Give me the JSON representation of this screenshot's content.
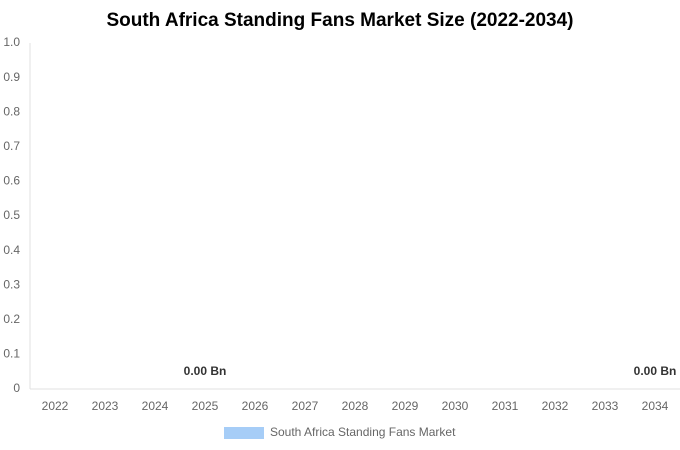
{
  "chart_data": {
    "type": "bar",
    "title": "South Africa Standing Fans Market Size (2022-2034)",
    "categories": [
      "2022",
      "2023",
      "2024",
      "2025",
      "2026",
      "2027",
      "2028",
      "2029",
      "2030",
      "2031",
      "2032",
      "2033",
      "2034"
    ],
    "series": [
      {
        "name": "South Africa Standing Fans Market",
        "color": "#a6cdf7",
        "values": [
          0,
          0,
          0,
          0,
          0,
          0,
          0,
          0,
          0,
          0,
          0,
          0,
          0
        ],
        "value_labels": [
          null,
          null,
          null,
          "0.00 Bn",
          null,
          null,
          null,
          null,
          null,
          null,
          null,
          null,
          "0.00 Bn"
        ]
      }
    ],
    "ylim": [
      0,
      1
    ],
    "yticks": [
      0,
      0.1,
      0.2,
      0.3,
      0.4,
      0.5,
      0.6,
      0.7,
      0.8,
      0.9,
      {
        "value": 1,
        "label": "1.0"
      }
    ],
    "grid": false,
    "legend": "bottom"
  }
}
